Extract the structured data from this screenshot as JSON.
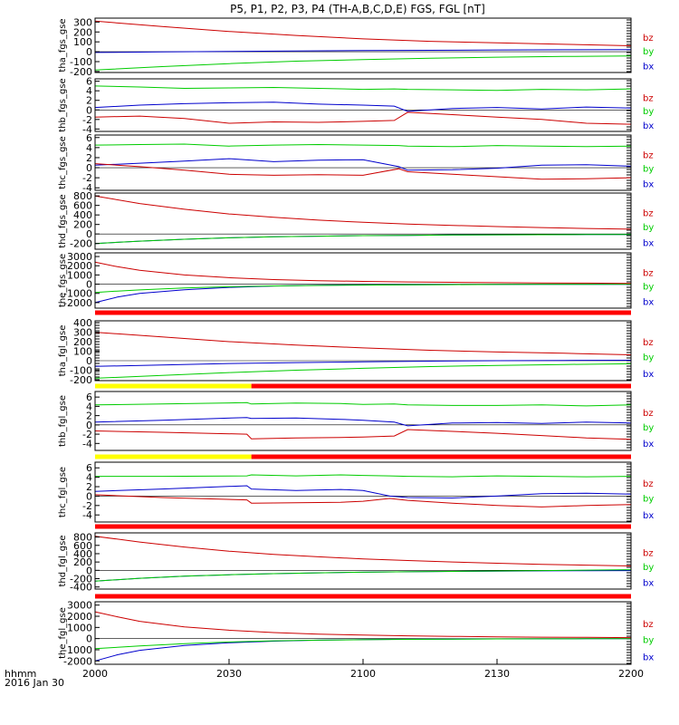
{
  "title": "P5, P1, P2, P3, P4 (TH-A,B,C,D,E) FGS, FGL [nT]",
  "colors": {
    "bx": "#0000cc",
    "by": "#00cc00",
    "bz": "#cc0000",
    "bar_red": "#ff0000",
    "bar_yellow": "#ffff00",
    "axis": "#000000"
  },
  "x_axis": {
    "tick_labels": [
      "2000",
      "2030",
      "2100",
      "2130",
      "2200"
    ],
    "tick_values": [
      0,
      30,
      60,
      90,
      120
    ],
    "xlim": [
      0,
      120
    ],
    "corner_label_1": "hhmm",
    "corner_label_2": "2016 Jan 30"
  },
  "legend_labels": [
    "bz",
    "by",
    "bx"
  ],
  "chart_data": [
    {
      "type": "line",
      "panel_label": "tha_fgs_gse",
      "ylim": [
        -210,
        340
      ],
      "yticks": [
        300,
        200,
        100,
        0,
        -100,
        -200
      ],
      "ytick_labels": [
        "300",
        "200",
        "100",
        "0",
        "-100",
        "-200"
      ],
      "x": [
        0,
        15,
        30,
        45,
        60,
        75,
        90,
        105,
        120
      ],
      "series": [
        {
          "name": "bx",
          "values": [
            -7,
            -2,
            3,
            8,
            12,
            15,
            18,
            20,
            22
          ]
        },
        {
          "name": "by",
          "values": [
            -185,
            -150,
            -120,
            -95,
            -80,
            -65,
            -55,
            -48,
            -42
          ]
        },
        {
          "name": "bz",
          "values": [
            310,
            255,
            205,
            165,
            130,
            105,
            90,
            75,
            60
          ]
        }
      ],
      "left_bar": "none"
    },
    {
      "type": "line",
      "panel_label": "thb_fgs_gse",
      "ylim": [
        -4.5,
        6.5
      ],
      "yticks": [
        6,
        4,
        2,
        0,
        -2,
        -4
      ],
      "ytick_labels": [
        "6",
        "4",
        "2",
        "0",
        "-2",
        "-4"
      ],
      "x": [
        0,
        10,
        20,
        30,
        40,
        50,
        60,
        67,
        70,
        80,
        90,
        100,
        110,
        120
      ],
      "series": [
        {
          "name": "bx",
          "values": [
            0.5,
            1.0,
            1.3,
            1.5,
            1.6,
            1.2,
            1.0,
            0.8,
            -0.3,
            0.3,
            0.5,
            0.2,
            0.6,
            0.4
          ]
        },
        {
          "name": "by",
          "values": [
            5,
            4.8,
            4.5,
            4.6,
            4.7,
            4.5,
            4.3,
            4.4,
            4.3,
            4.2,
            4.1,
            4.3,
            4.2,
            4.4
          ]
        },
        {
          "name": "bz",
          "values": [
            -1.5,
            -1.3,
            -1.8,
            -2.8,
            -2.5,
            -2.6,
            -2.4,
            -2.2,
            -0.5,
            -1.0,
            -1.5,
            -2.0,
            -2.8,
            -3.0
          ]
        }
      ],
      "left_bar": "none"
    },
    {
      "type": "line",
      "panel_label": "thc_fgs_gse",
      "ylim": [
        -4.5,
        6.5
      ],
      "yticks": [
        6,
        4,
        2,
        0,
        -2,
        -4
      ],
      "ytick_labels": [
        "6",
        "4",
        "2",
        "0",
        "-2",
        "-4"
      ],
      "x": [
        0,
        10,
        20,
        30,
        40,
        50,
        60,
        68,
        70,
        80,
        90,
        100,
        110,
        120
      ],
      "series": [
        {
          "name": "bx",
          "values": [
            0.5,
            0.9,
            1.3,
            1.8,
            1.2,
            1.5,
            1.6,
            0.2,
            -0.5,
            -0.4,
            -0.1,
            0.5,
            0.6,
            0.3
          ]
        },
        {
          "name": "by",
          "values": [
            4.5,
            4.6,
            4.7,
            4.3,
            4.5,
            4.6,
            4.5,
            4.4,
            4.3,
            4.2,
            4.4,
            4.3,
            4.2,
            4.3
          ]
        },
        {
          "name": "bz",
          "values": [
            0.8,
            0.2,
            -0.5,
            -1.3,
            -1.5,
            -1.4,
            -1.5,
            -0.2,
            -0.8,
            -1.3,
            -1.8,
            -2.3,
            -2.2,
            -2.0
          ]
        }
      ],
      "left_bar": "none"
    },
    {
      "type": "line",
      "panel_label": "thd_fgs_gse",
      "ylim": [
        -320,
        860
      ],
      "yticks": [
        800,
        600,
        400,
        200,
        0,
        -200
      ],
      "ytick_labels": [
        "800",
        "600",
        "400",
        "200",
        "0",
        "-200"
      ],
      "x": [
        0,
        10,
        20,
        30,
        40,
        50,
        60,
        70,
        80,
        90,
        100,
        110,
        120
      ],
      "series": [
        {
          "name": "bx",
          "values": [
            -200,
            -150,
            -110,
            -80,
            -60,
            -45,
            -35,
            -28,
            -22,
            -18,
            -15,
            -12,
            -10
          ]
        },
        {
          "name": "by",
          "values": [
            -200,
            -150,
            -110,
            -80,
            -60,
            -45,
            -35,
            -28,
            -22,
            -18,
            -15,
            -12,
            -10
          ]
        },
        {
          "name": "bz",
          "values": [
            800,
            640,
            520,
            420,
            350,
            290,
            245,
            210,
            180,
            155,
            135,
            115,
            100
          ]
        }
      ],
      "left_bar": "none"
    },
    {
      "type": "line",
      "panel_label": "the_fgs_gse",
      "ylim": [
        -2600,
        3400
      ],
      "yticks": [
        3000,
        2000,
        1000,
        0,
        -1000,
        -2000
      ],
      "ytick_labels": [
        "3000",
        "2000",
        "1000",
        "0",
        "-1000",
        "-2000"
      ],
      "x": [
        0,
        5,
        10,
        20,
        30,
        40,
        50,
        60,
        70,
        80,
        90,
        100,
        110,
        120
      ],
      "series": [
        {
          "name": "bx",
          "values": [
            -2000,
            -1400,
            -1000,
            -600,
            -350,
            -200,
            -120,
            -80,
            -60,
            -40,
            -30,
            -20,
            -15,
            -10
          ]
        },
        {
          "name": "by",
          "values": [
            -900,
            -750,
            -620,
            -420,
            -280,
            -190,
            -140,
            -100,
            -70,
            -50,
            -30,
            -20,
            -10,
            0
          ]
        },
        {
          "name": "bz",
          "values": [
            2400,
            1900,
            1500,
            1000,
            700,
            500,
            380,
            300,
            240,
            200,
            160,
            130,
            110,
            90
          ]
        }
      ],
      "left_bar": "none"
    },
    {
      "type": "line",
      "panel_label": "tha_fgl_gse",
      "ylim": [
        -210,
        420
      ],
      "yticks": [
        400,
        300,
        200,
        100,
        0,
        -100,
        -200
      ],
      "ytick_labels": [
        "400",
        "300",
        "200",
        "100",
        "0",
        "-100",
        "-200"
      ],
      "x": [
        0,
        15,
        30,
        45,
        60,
        75,
        90,
        105,
        120
      ],
      "series": [
        {
          "name": "bx",
          "values": [
            -60,
            -45,
            -30,
            -20,
            -12,
            -5,
            0,
            3,
            5
          ]
        },
        {
          "name": "by",
          "values": [
            -185,
            -155,
            -125,
            -100,
            -80,
            -62,
            -50,
            -40,
            -32
          ]
        },
        {
          "name": "bz",
          "values": [
            300,
            250,
            200,
            165,
            135,
            110,
            92,
            78,
            62
          ]
        }
      ],
      "left_bar": "red"
    },
    {
      "type": "line",
      "panel_label": "thb_fgl_gse",
      "ylim": [
        -5.5,
        7.2
      ],
      "yticks": [
        6,
        4,
        2,
        0,
        -2,
        -4
      ],
      "ytick_labels": [
        "6",
        "4",
        "2",
        "0",
        "-2",
        "-4"
      ],
      "x": [
        0,
        15,
        34,
        35,
        45,
        55,
        60,
        67,
        70,
        80,
        90,
        100,
        110,
        120
      ],
      "series": [
        {
          "name": "bx",
          "values": [
            0.6,
            1.0,
            1.6,
            1.4,
            1.5,
            1.2,
            1.0,
            0.6,
            -0.2,
            0.4,
            0.5,
            0.3,
            0.6,
            0.4
          ]
        },
        {
          "name": "by",
          "values": [
            4.3,
            4.5,
            4.8,
            4.5,
            4.7,
            4.6,
            4.4,
            4.5,
            4.3,
            4.2,
            4.2,
            4.3,
            4.1,
            4.3
          ]
        },
        {
          "name": "bz",
          "values": [
            -1.3,
            -1.6,
            -2.0,
            -3.0,
            -2.8,
            -2.7,
            -2.6,
            -2.4,
            -1.0,
            -1.4,
            -1.8,
            -2.3,
            -2.8,
            -3.1
          ]
        }
      ],
      "left_bar": "yellow"
    },
    {
      "type": "line",
      "panel_label": "thc_fgl_gse",
      "ylim": [
        -5.5,
        7.2
      ],
      "yticks": [
        6,
        4,
        2,
        0,
        -2,
        -4
      ],
      "ytick_labels": [
        "6",
        "4",
        "2",
        "0",
        "-2",
        "-4"
      ],
      "x": [
        0,
        15,
        34,
        35,
        45,
        55,
        60,
        66,
        70,
        80,
        90,
        100,
        110,
        120
      ],
      "series": [
        {
          "name": "bx",
          "values": [
            1.0,
            1.5,
            2.2,
            1.5,
            1.2,
            1.4,
            1.2,
            0.0,
            -0.3,
            -0.4,
            0.0,
            0.5,
            0.6,
            0.4
          ]
        },
        {
          "name": "by",
          "values": [
            4.2,
            4.2,
            4.3,
            4.5,
            4.3,
            4.5,
            4.4,
            4.3,
            4.2,
            4.1,
            4.3,
            4.2,
            4.1,
            4.2
          ]
        },
        {
          "name": "bz",
          "values": [
            0.3,
            -0.3,
            -0.8,
            -1.5,
            -1.4,
            -1.3,
            -1.1,
            -0.5,
            -0.9,
            -1.5,
            -2.0,
            -2.3,
            -2.0,
            -1.8
          ]
        }
      ],
      "left_bar": "yellow"
    },
    {
      "type": "line",
      "panel_label": "thd_fgl_gse",
      "ylim": [
        -450,
        900
      ],
      "yticks": [
        800,
        600,
        400,
        200,
        0,
        -200,
        -400
      ],
      "ytick_labels": [
        "800",
        "600",
        "400",
        "200",
        "0",
        "-200",
        "-400"
      ],
      "x": [
        0,
        10,
        20,
        30,
        40,
        50,
        60,
        70,
        80,
        90,
        100,
        110,
        120
      ],
      "series": [
        {
          "name": "bx",
          "values": [
            -260,
            -190,
            -140,
            -105,
            -80,
            -60,
            -45,
            -35,
            -25,
            -18,
            -12,
            -8,
            -5
          ]
        },
        {
          "name": "by",
          "values": [
            -260,
            -190,
            -140,
            -105,
            -80,
            -60,
            -45,
            -35,
            -25,
            -15,
            -5,
            5,
            15
          ]
        },
        {
          "name": "bz",
          "values": [
            820,
            680,
            560,
            460,
            385,
            325,
            275,
            235,
            200,
            170,
            145,
            125,
            105
          ]
        }
      ],
      "left_bar": "red"
    },
    {
      "type": "line",
      "panel_label": "the_fgl_gse",
      "ylim": [
        -2300,
        3300
      ],
      "yticks": [
        3000,
        2000,
        1000,
        0,
        -1000,
        -2000
      ],
      "ytick_labels": [
        "3000",
        "2000",
        "1000",
        "0",
        "-1000",
        "-2000"
      ],
      "x": [
        0,
        5,
        10,
        20,
        30,
        40,
        50,
        60,
        70,
        80,
        90,
        100,
        110,
        120
      ],
      "series": [
        {
          "name": "bx",
          "values": [
            -2000,
            -1450,
            -1050,
            -620,
            -380,
            -230,
            -140,
            -90,
            -60,
            -40,
            -30,
            -20,
            -15,
            -10
          ]
        },
        {
          "name": "by",
          "values": [
            -900,
            -780,
            -650,
            -450,
            -300,
            -200,
            -140,
            -100,
            -70,
            -50,
            -30,
            -20,
            -10,
            0
          ]
        },
        {
          "name": "bz",
          "values": [
            2400,
            1950,
            1550,
            1050,
            750,
            540,
            400,
            310,
            250,
            200,
            160,
            130,
            110,
            90
          ]
        }
      ],
      "left_bar": "red"
    }
  ]
}
